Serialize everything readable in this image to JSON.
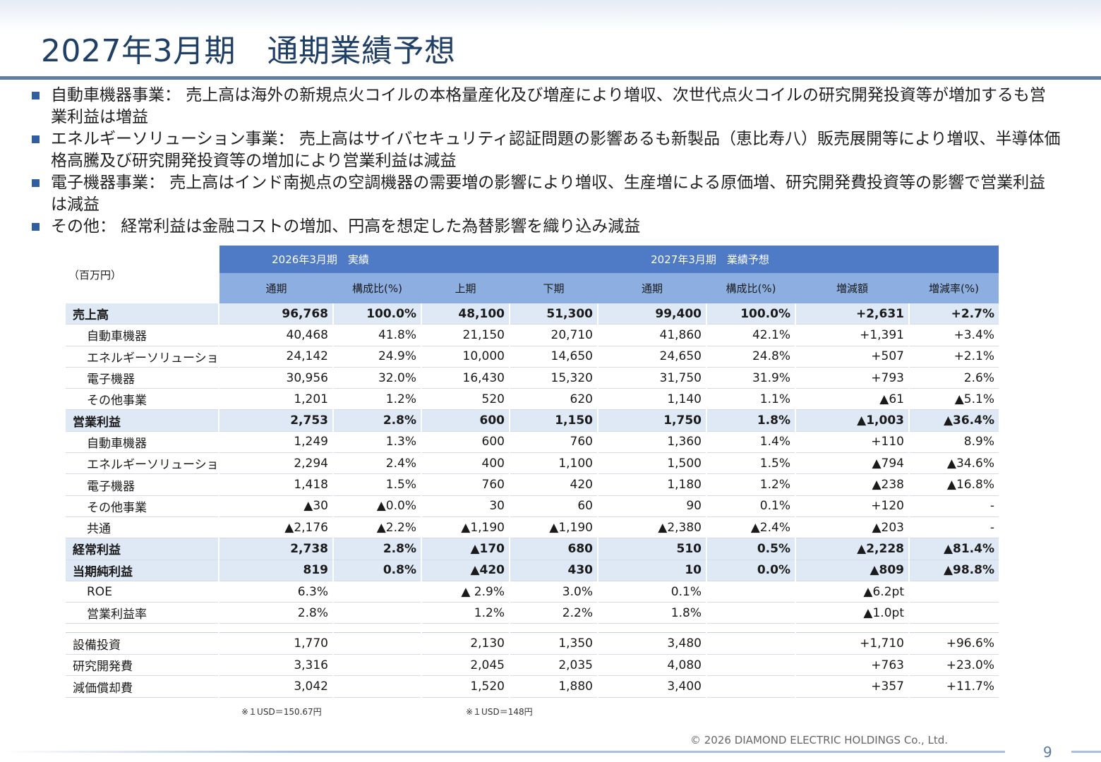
{
  "title": "2027年3月期　通期業績予想",
  "bullets": [
    "自動車機器事業：  売上高は海外の新規点火コイルの本格量産化及び増産により増収、次世代点火コイルの研究開発投資等が増加するも営業利益は増益",
    "エネルギーソリューション事業：  売上高はサイバセキュリティ認証問題の影響あるも新製品（恵比寿八）販売展開等により増収、半導体価格高騰及び研究開発投資等の増加により営業利益は減益",
    "電子機器事業：  売上高はインド南拠点の空調機器の需要増の影響により増収、生産増による原価増、研究開発費投資等の影響で営業利益は減益",
    "その他：   経常利益は金融コストの増加、円高を想定した為替影響を織り込み減益"
  ],
  "table": {
    "unit_label": "（百万円）",
    "group_actual": "2026年3月期　実績",
    "group_forecast": "2027年3月期　業績予想",
    "columns": [
      "通期",
      "構成比(%)",
      "上期",
      "下期",
      "通期",
      "構成比(%)",
      "増減額",
      "増減率(%)"
    ],
    "rows": [
      {
        "label": "売上高",
        "bold": true,
        "sub": false,
        "values": [
          "96,768",
          "100.0%",
          "48,100",
          "51,300",
          "99,400",
          "100.0%",
          "+2,631",
          "+2.7%"
        ]
      },
      {
        "label": "自動車機器",
        "bold": false,
        "sub": true,
        "values": [
          "40,468",
          "41.8%",
          "21,150",
          "20,710",
          "41,860",
          "42.1%",
          "+1,391",
          "+3.4%"
        ]
      },
      {
        "label": "エネルギーソリューション",
        "bold": false,
        "sub": true,
        "values": [
          "24,142",
          "24.9%",
          "10,000",
          "14,650",
          "24,650",
          "24.8%",
          "+507",
          "+2.1%"
        ]
      },
      {
        "label": "電子機器",
        "bold": false,
        "sub": true,
        "values": [
          "30,956",
          "32.0%",
          "16,430",
          "15,320",
          "31,750",
          "31.9%",
          "+793",
          "2.6%"
        ]
      },
      {
        "label": "その他事業",
        "bold": false,
        "sub": true,
        "values": [
          "1,201",
          "1.2%",
          "520",
          "620",
          "1,140",
          "1.1%",
          "▲61",
          "▲5.1%"
        ]
      },
      {
        "label": "営業利益",
        "bold": true,
        "sub": false,
        "values": [
          "2,753",
          "2.8%",
          "600",
          "1,150",
          "1,750",
          "1.8%",
          "▲1,003",
          "▲36.4%"
        ]
      },
      {
        "label": "自動車機器",
        "bold": false,
        "sub": true,
        "values": [
          "1,249",
          "1.3%",
          "600",
          "760",
          "1,360",
          "1.4%",
          "+110",
          "8.9%"
        ]
      },
      {
        "label": "エネルギーソリューション",
        "bold": false,
        "sub": true,
        "values": [
          "2,294",
          "2.4%",
          "400",
          "1,100",
          "1,500",
          "1.5%",
          "▲794",
          "▲34.6%"
        ]
      },
      {
        "label": "電子機器",
        "bold": false,
        "sub": true,
        "values": [
          "1,418",
          "1.5%",
          "760",
          "420",
          "1,180",
          "1.2%",
          "▲238",
          "▲16.8%"
        ]
      },
      {
        "label": "その他事業",
        "bold": false,
        "sub": true,
        "values": [
          "▲30",
          "▲0.0%",
          "30",
          "60",
          "90",
          "0.1%",
          "+120",
          "-"
        ]
      },
      {
        "label": "共通",
        "bold": false,
        "sub": true,
        "values": [
          "▲2,176",
          "▲2.2%",
          "▲1,190",
          "▲1,190",
          "▲2,380",
          "▲2.4%",
          "▲203",
          "-"
        ]
      },
      {
        "label": "経常利益",
        "bold": true,
        "sub": false,
        "values": [
          "2,738",
          "2.8%",
          "▲170",
          "680",
          "510",
          "0.5%",
          "▲2,228",
          "▲81.4%"
        ]
      },
      {
        "label": "当期純利益",
        "bold": true,
        "sub": false,
        "values": [
          "819",
          "0.8%",
          "▲420",
          "430",
          "10",
          "0.0%",
          "▲809",
          "▲98.8%"
        ]
      },
      {
        "label": "ROE",
        "bold": false,
        "sub": true,
        "values": [
          "6.3%",
          "",
          "▲ 2.9%",
          "3.0%",
          "0.1%",
          "",
          "▲6.2pt",
          ""
        ]
      },
      {
        "label": "営業利益率",
        "bold": false,
        "sub": true,
        "values": [
          "2.8%",
          "",
          "1.2%",
          "2.2%",
          "1.8%",
          "",
          "▲1.0pt",
          ""
        ]
      }
    ],
    "capex_rows": [
      {
        "label": "設備投資",
        "values": [
          "1,770",
          "",
          "2,130",
          "1,350",
          "3,480",
          "",
          "+1,710",
          "+96.6%"
        ]
      },
      {
        "label": "研究開発費",
        "values": [
          "3,316",
          "",
          "2,045",
          "2,035",
          "4,080",
          "",
          "+763",
          "+23.0%"
        ]
      },
      {
        "label": "減価償却費",
        "values": [
          "3,042",
          "",
          "1,520",
          "1,880",
          "3,400",
          "",
          "+357",
          "+11.7%"
        ]
      }
    ]
  },
  "notes": {
    "actual_rate": "※１USD＝150.67円",
    "forecast_rate": "※１USD＝148円"
  },
  "footer": {
    "copyright": "©  2026  DIAMOND ELECTRIC HOLDINGS Co., Ltd.",
    "page": "9"
  },
  "colors": {
    "title": "#1f3f66",
    "header_dark": "#4f7ac5",
    "header_light": "#8daee0",
    "row_highlight": "#dfe8f5",
    "bullet": "#2f5fa0"
  }
}
